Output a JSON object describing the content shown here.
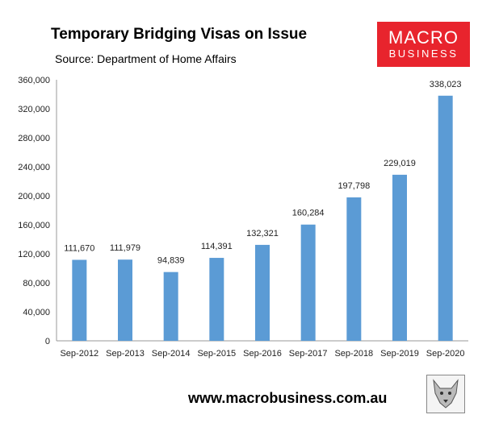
{
  "header": {
    "title": "Temporary Bridging Visas on Issue",
    "source": "Source: Department of Home Affairs"
  },
  "logo": {
    "line1": "MACRO",
    "line2": "BUSINESS",
    "color": "#e8242d",
    "text": "MACRO BUSINESS"
  },
  "footer": {
    "url": "www.macrobusiness.com.au"
  },
  "mascot": {
    "icon": "wolf-icon"
  },
  "chart_data": {
    "type": "bar",
    "title": "Temporary Bridging Visas on Issue",
    "subtitle": "Source: Department of Home Affairs",
    "categories": [
      "Sep-2012",
      "Sep-2013",
      "Sep-2014",
      "Sep-2015",
      "Sep-2016",
      "Sep-2017",
      "Sep-2018",
      "Sep-2019",
      "Sep-2020"
    ],
    "values": [
      111670,
      111979,
      94839,
      114391,
      132321,
      160284,
      197798,
      229019,
      338023
    ],
    "value_labels": [
      "111,670",
      "111,979",
      "94,839",
      "114,391",
      "132,321",
      "160,284",
      "197,798",
      "229,019",
      "338,023"
    ],
    "ylim": [
      0,
      360000
    ],
    "yticks": [
      0,
      40000,
      80000,
      120000,
      160000,
      200000,
      240000,
      280000,
      320000,
      360000
    ],
    "ytick_labels": [
      "0",
      "40,000",
      "80,000",
      "120,000",
      "160,000",
      "200,000",
      "240,000",
      "280,000",
      "320,000",
      "360,000"
    ],
    "grid": false,
    "bar_color": "#5b9bd5"
  }
}
